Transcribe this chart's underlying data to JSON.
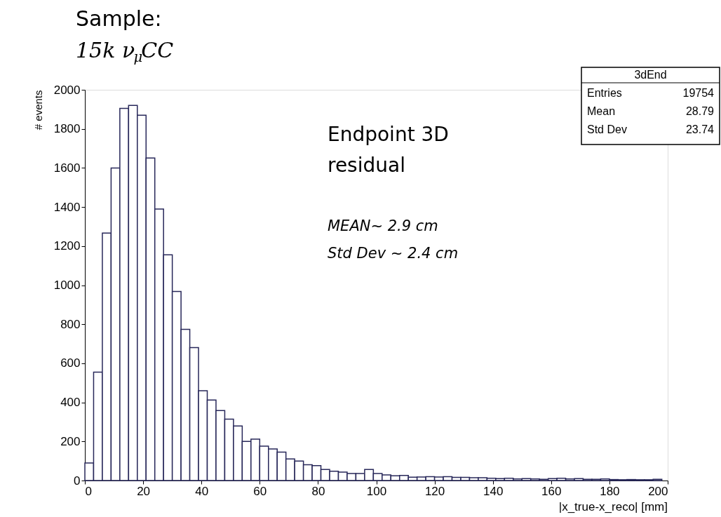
{
  "chart_data": {
    "type": "histogram",
    "title": "Sample:",
    "subtitle": "15k ν$_{μ}$CC",
    "xlabel": "|x_true-x_reco| [mm]",
    "ylabel": "# events",
    "bins": [
      0,
      3,
      6,
      9,
      12,
      15,
      18,
      21,
      24,
      27,
      30,
      33,
      36,
      39,
      42,
      45,
      48,
      51,
      54,
      57,
      60,
      63,
      66,
      69,
      72,
      75,
      78,
      81,
      84,
      87,
      90,
      93,
      96,
      99,
      102,
      105,
      108,
      111,
      114,
      117,
      120,
      123,
      126,
      129,
      132,
      135,
      138,
      141,
      144,
      147,
      150,
      153,
      156,
      159,
      162,
      165,
      168,
      171,
      174,
      177,
      180,
      183,
      186,
      189,
      192,
      195,
      198
    ],
    "values": [
      90,
      555,
      1267,
      1600,
      1905,
      1920,
      1870,
      1651,
      1390,
      1155,
      968,
      774,
      680,
      460,
      412,
      358,
      314,
      279,
      200,
      212,
      176,
      162,
      145,
      110,
      100,
      81,
      76,
      57,
      48,
      43,
      36,
      36,
      57,
      36,
      29,
      24,
      26,
      17,
      18,
      20,
      18,
      20,
      16,
      16,
      14,
      14,
      12,
      10,
      12,
      8,
      10,
      8,
      6,
      10,
      12,
      8,
      10,
      6,
      6,
      8,
      5,
      4,
      5,
      4,
      4,
      6
    ],
    "color": "#28285a",
    "xlim": [
      0,
      200
    ],
    "ylim": [
      0,
      2000
    ],
    "xticks": [
      0,
      20,
      40,
      60,
      80,
      100,
      120,
      140,
      160,
      180,
      200
    ],
    "yticks": [
      0,
      200,
      400,
      600,
      800,
      1000,
      1200,
      1400,
      1600,
      1800,
      2000
    ],
    "grid": false,
    "annotations": [
      "3dEnd",
      "Entries 19754",
      "Mean 28.79",
      "Std Dev 23.74",
      "Endpoint 3D\nresidual",
      "MEAN~ 2.9 cm",
      "Std Dev ~ 2.4 cm"
    ]
  }
}
